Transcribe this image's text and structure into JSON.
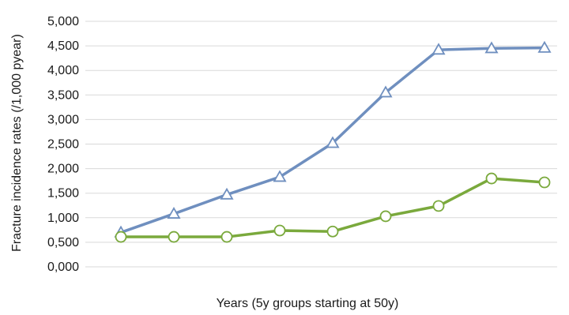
{
  "chart_data": {
    "type": "line",
    "xlabel": "Years (5y groups starting at 50y)",
    "ylabel": "Fracture incidence rates (/1,000 pyear)",
    "ylim": [
      0,
      5000
    ],
    "yticks": [
      "0,000",
      "0,500",
      "1,000",
      "1,500",
      "2,000",
      "2,500",
      "3,000",
      "3,500",
      "4,000",
      "4,500",
      "5,000"
    ],
    "x": [
      1,
      2,
      3,
      4,
      5,
      6,
      7,
      8,
      9
    ],
    "grid": true,
    "legend": "none",
    "series": [
      {
        "marker": "triangle",
        "color": "#6f8fbf",
        "values": [
          700,
          1080,
          1470,
          1830,
          2520,
          3550,
          4420,
          4450,
          4460
        ]
      },
      {
        "marker": "circle",
        "color": "#7aa93c",
        "values": [
          610,
          610,
          610,
          740,
          720,
          1030,
          1240,
          1800,
          1720
        ]
      }
    ]
  }
}
